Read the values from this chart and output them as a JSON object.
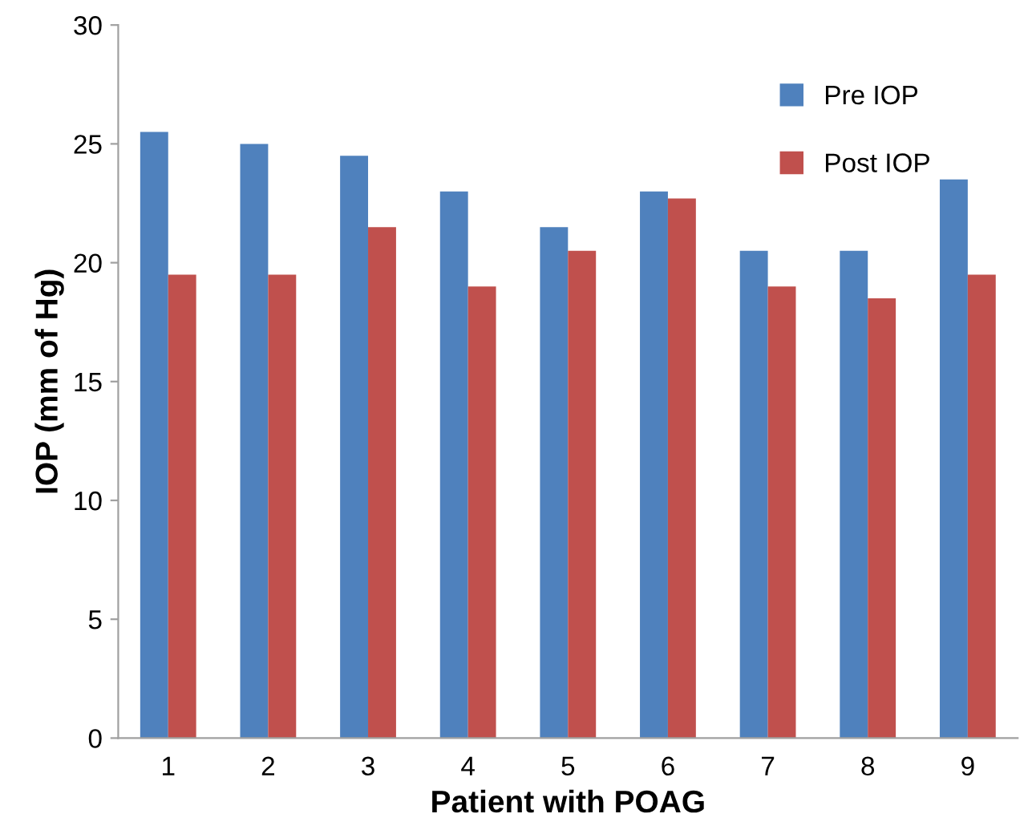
{
  "chart_data": {
    "type": "bar",
    "xlabel": "Patient with POAG",
    "ylabel": "IOP (mm of Hg)",
    "categories": [
      "1",
      "2",
      "3",
      "4",
      "5",
      "6",
      "7",
      "8",
      "9"
    ],
    "series": [
      {
        "name": "Pre IOP",
        "color": "#4f81bd",
        "values": [
          25.5,
          25,
          24.5,
          23,
          21.5,
          23,
          20.5,
          20.5,
          23.5
        ]
      },
      {
        "name": "Post IOP",
        "color": "#c0504d",
        "values": [
          19.5,
          19.5,
          21.5,
          19,
          20.5,
          22.7,
          19,
          18.5,
          19.5
        ]
      }
    ],
    "ylim": [
      0,
      30
    ],
    "yticks": [
      0,
      5,
      10,
      15,
      20,
      25,
      30
    ],
    "grid": false,
    "legend": "top right"
  }
}
